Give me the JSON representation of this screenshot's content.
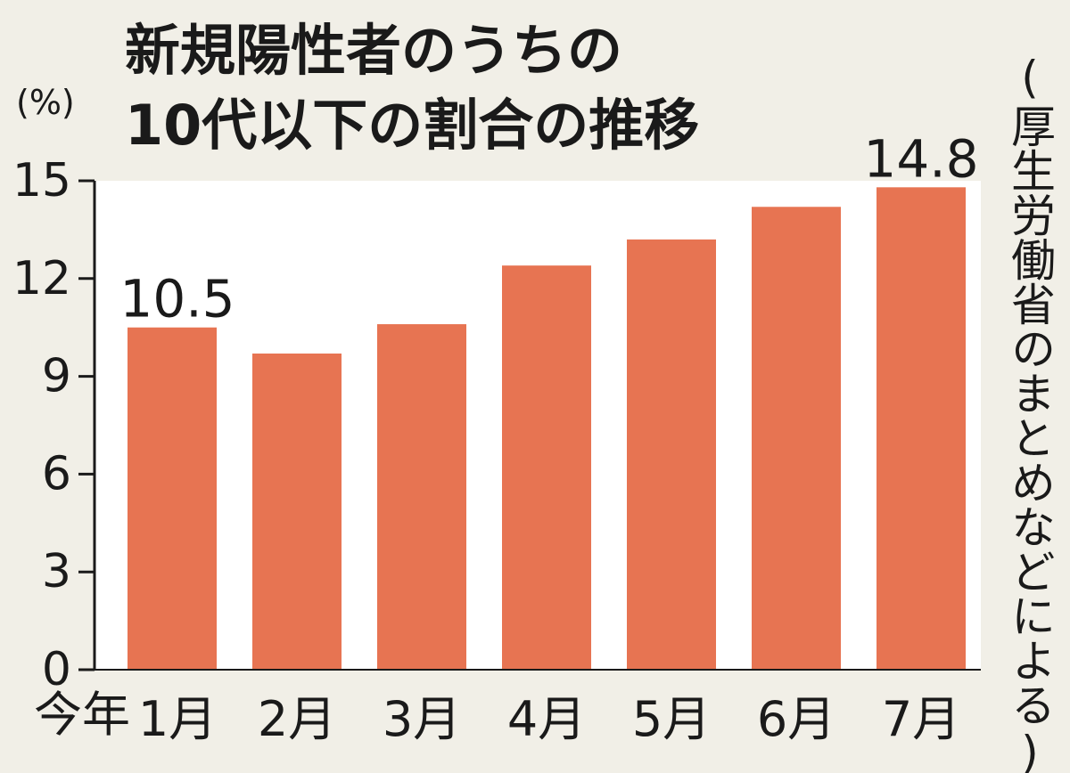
{
  "title_lines": [
    "新規陽性者のうちの",
    "10代以下の割合の推移"
  ],
  "unit": "(%)",
  "source": "(厚生労働省のまとめなどによる)",
  "x_prefix": "今年",
  "colors": {
    "bar": "#e77452",
    "plot_background": "#ffffff",
    "page_background": "#f1efe7",
    "text": "#1a1a1a"
  },
  "chart_data": {
    "type": "bar",
    "title": "新規陽性者のうちの10代以下の割合の推移",
    "xlabel": "",
    "ylabel": "(%)",
    "categories": [
      "1月",
      "2月",
      "3月",
      "4月",
      "5月",
      "6月",
      "7月"
    ],
    "values": [
      10.5,
      9.7,
      10.6,
      12.4,
      13.2,
      14.2,
      14.8
    ],
    "data_labels": [
      "10.5",
      "",
      "",
      "",
      "",
      "",
      "14.8"
    ],
    "ylim": [
      0,
      15
    ],
    "yticks": [
      0,
      3,
      6,
      9,
      12,
      15
    ],
    "grid": false,
    "legend": "none"
  }
}
